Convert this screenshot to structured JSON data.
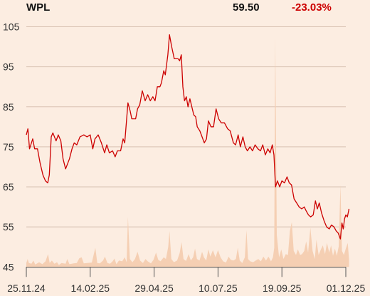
{
  "header": {
    "ticker": "WPL",
    "price": "59.50",
    "change": "-23.03%"
  },
  "chart_data": {
    "type": "line",
    "title": "",
    "xlabel": "",
    "ylabel": "",
    "ylim": [
      45,
      108
    ],
    "yticks": [
      45,
      55,
      65,
      75,
      85,
      95,
      105
    ],
    "xticks": [
      "25.11.24",
      "14.02.25",
      "29.04.25",
      "10.07.25",
      "19.09.25",
      "01.12.25"
    ],
    "x_range": [
      0,
      100
    ],
    "grid": "horizontal",
    "colors": {
      "price_line": "#cc0000",
      "volume_area": "#f5cfb3",
      "grid": "#d9c2b2",
      "axis": "#555555"
    },
    "series": [
      {
        "values": [
          [
            0,
            78.0
          ],
          [
            0.5,
            79.5
          ],
          [
            1,
            74.5
          ],
          [
            2,
            77.0
          ],
          [
            2.6,
            74.5
          ],
          [
            3.5,
            74.5
          ],
          [
            4.3,
            71.0
          ],
          [
            5.2,
            68.0
          ],
          [
            6,
            66.5
          ],
          [
            6.7,
            66.0
          ],
          [
            7.2,
            68.0
          ],
          [
            7.8,
            77.5
          ],
          [
            8.3,
            78.5
          ],
          [
            9.3,
            76.5
          ],
          [
            10,
            78.0
          ],
          [
            10.8,
            76.5
          ],
          [
            11.5,
            72.0
          ],
          [
            12.3,
            69.5
          ],
          [
            13.5,
            72.0
          ],
          [
            14.3,
            74.5
          ],
          [
            15,
            76.0
          ],
          [
            15.8,
            75.5
          ],
          [
            16.8,
            77.5
          ],
          [
            18,
            78.0
          ],
          [
            19,
            77.5
          ],
          [
            20,
            78.0
          ],
          [
            20.8,
            74.5
          ],
          [
            21.5,
            77.0
          ],
          [
            22.5,
            78.0
          ],
          [
            23.5,
            76.0
          ],
          [
            24.5,
            73.5
          ],
          [
            25.2,
            75.5
          ],
          [
            26,
            73.5
          ],
          [
            27,
            74.0
          ],
          [
            27.8,
            72.5
          ],
          [
            28.5,
            74.0
          ],
          [
            29.5,
            74.0
          ],
          [
            30.3,
            77.0
          ],
          [
            30.8,
            76.0
          ],
          [
            31.8,
            86.0
          ],
          [
            32.5,
            84.0
          ],
          [
            33,
            82.0
          ],
          [
            34.2,
            82.0
          ],
          [
            34.8,
            84.5
          ],
          [
            35.5,
            85.5
          ],
          [
            36.3,
            89.0
          ],
          [
            37.2,
            86.5
          ],
          [
            38,
            88.0
          ],
          [
            38.8,
            86.5
          ],
          [
            39.6,
            87.5
          ],
          [
            40.3,
            86.5
          ],
          [
            41,
            90.0
          ],
          [
            41.8,
            90.0
          ],
          [
            42.3,
            91.0
          ],
          [
            43,
            94.0
          ],
          [
            43.5,
            93.0
          ],
          [
            44.3,
            98.0
          ],
          [
            44.8,
            103.0
          ],
          [
            45.5,
            100.0
          ],
          [
            46.3,
            97.0
          ],
          [
            47.5,
            97.0
          ],
          [
            48,
            96.5
          ],
          [
            48.5,
            98.0
          ],
          [
            49,
            90.0
          ],
          [
            49.5,
            86.5
          ],
          [
            50.1,
            87.5
          ],
          [
            50.6,
            85.0
          ],
          [
            51.2,
            87.0
          ],
          [
            51.8,
            85.0
          ],
          [
            52.4,
            83.0
          ],
          [
            53,
            82.5
          ],
          [
            53.5,
            80.0
          ],
          [
            54.3,
            79.0
          ],
          [
            55,
            77.5
          ],
          [
            55.7,
            76.0
          ],
          [
            56.4,
            77.0
          ],
          [
            57,
            81.5
          ],
          [
            57.8,
            80.0
          ],
          [
            58.6,
            80.0
          ],
          [
            59.4,
            84.5
          ],
          [
            60.2,
            82.0
          ],
          [
            61,
            81.0
          ],
          [
            62,
            81.0
          ],
          [
            63,
            79.5
          ],
          [
            63.8,
            79.0
          ],
          [
            64.8,
            76.0
          ],
          [
            65.5,
            75.5
          ],
          [
            66.3,
            78.0
          ],
          [
            67,
            75.0
          ],
          [
            67.8,
            77.5
          ],
          [
            68.5,
            75.0
          ],
          [
            69.2,
            74.0
          ],
          [
            70,
            75.0
          ],
          [
            70.8,
            74.0
          ],
          [
            71.6,
            75.5
          ],
          [
            72.5,
            74.5
          ],
          [
            73.3,
            74.0
          ],
          [
            74,
            75.5
          ],
          [
            74.8,
            73.0
          ],
          [
            75.6,
            74.5
          ],
          [
            76.3,
            73.5
          ],
          [
            77,
            75.5
          ],
          [
            77.5,
            73.0
          ],
          [
            78,
            65.0
          ],
          [
            78.6,
            66.5
          ],
          [
            79.3,
            65.0
          ],
          [
            80,
            66.5
          ],
          [
            80.8,
            66.0
          ],
          [
            81.6,
            67.5
          ],
          [
            82.3,
            66.0
          ],
          [
            83,
            65.5
          ],
          [
            83.8,
            62.0
          ],
          [
            84.6,
            61.0
          ],
          [
            85.4,
            60.0
          ],
          [
            86.2,
            59.5
          ],
          [
            87,
            60.0
          ],
          [
            87.6,
            59.0
          ],
          [
            88.3,
            58.0
          ],
          [
            89,
            57.5
          ],
          [
            89.8,
            58.0
          ],
          [
            90.5,
            61.5
          ],
          [
            91.1,
            59.5
          ],
          [
            91.7,
            61.0
          ],
          [
            92.4,
            58.5
          ],
          [
            93.2,
            56.5
          ],
          [
            94,
            55.0
          ],
          [
            94.8,
            54.5
          ],
          [
            95.5,
            55.5
          ],
          [
            96.3,
            55.0
          ],
          [
            97,
            54.0
          ],
          [
            97.6,
            53.5
          ],
          [
            98.3,
            52.0
          ],
          [
            98.8,
            56.0
          ],
          [
            99.2,
            54.5
          ],
          [
            99.6,
            57.0
          ],
          [
            100,
            58.0
          ],
          [
            100.5,
            57.5
          ],
          [
            101,
            59.5
          ]
        ]
      }
    ],
    "volume_shape": [
      [
        0,
        1.0
      ],
      [
        0.4,
        2.0
      ],
      [
        0.8,
        1.0
      ],
      [
        1.6,
        0.8
      ],
      [
        2.2,
        1.6
      ],
      [
        2.8,
        0.6
      ],
      [
        4,
        1.2
      ],
      [
        5,
        0.7
      ],
      [
        6,
        1.4
      ],
      [
        6.8,
        3.2
      ],
      [
        7.3,
        1.0
      ],
      [
        8,
        1.6
      ],
      [
        8.8,
        0.8
      ],
      [
        9.6,
        1.2
      ],
      [
        10.2,
        0.5
      ],
      [
        11,
        1.0
      ],
      [
        12.3,
        0.8
      ],
      [
        12.8,
        2.0
      ],
      [
        13.5,
        0.7
      ],
      [
        14.8,
        0.9
      ],
      [
        15.8,
        1.0
      ],
      [
        16.6,
        2.2
      ],
      [
        17.3,
        2.4
      ],
      [
        18,
        0.9
      ],
      [
        19,
        1.0
      ],
      [
        20.5,
        1.1
      ],
      [
        21.6,
        4.8
      ],
      [
        22.2,
        1.0
      ],
      [
        23,
        0.9
      ],
      [
        24,
        1.6
      ],
      [
        24.6,
        2.6
      ],
      [
        25.4,
        1.0
      ],
      [
        26.2,
        0.8
      ],
      [
        27,
        1.4
      ],
      [
        27.6,
        2.1
      ],
      [
        28.2,
        0.7
      ],
      [
        29,
        1.6
      ],
      [
        30,
        1.4
      ],
      [
        30.8,
        2.4
      ],
      [
        31.4,
        1.2
      ],
      [
        31.8,
        12.5
      ],
      [
        32.4,
        2.0
      ],
      [
        33.2,
        1.2
      ],
      [
        34,
        2.0
      ],
      [
        34.8,
        3.8
      ],
      [
        35.6,
        1.6
      ],
      [
        36.5,
        1.0
      ],
      [
        37.3,
        2.0
      ],
      [
        38,
        1.4
      ],
      [
        39,
        0.9
      ],
      [
        39.8,
        1.8
      ],
      [
        40.6,
        3.6
      ],
      [
        41.3,
        1.8
      ],
      [
        42,
        1.4
      ],
      [
        43,
        2.4
      ],
      [
        43.7,
        2.0
      ],
      [
        44.4,
        5.0
      ],
      [
        44.8,
        9.0
      ],
      [
        45.4,
        2.0
      ],
      [
        46.2,
        1.2
      ],
      [
        47.2,
        1.6
      ],
      [
        48,
        3.5
      ],
      [
        48.6,
        6.2
      ],
      [
        49.2,
        2.0
      ],
      [
        50,
        1.5
      ],
      [
        50.8,
        3.2
      ],
      [
        51.5,
        1.6
      ],
      [
        52.2,
        2.4
      ],
      [
        52.8,
        4.6
      ],
      [
        53.4,
        2.0
      ],
      [
        54.2,
        1.6
      ],
      [
        55,
        3.8
      ],
      [
        55.6,
        2.4
      ],
      [
        56.3,
        1.6
      ],
      [
        57,
        4.4
      ],
      [
        57.6,
        2.6
      ],
      [
        58.4,
        4.2
      ],
      [
        59.2,
        2.4
      ],
      [
        60,
        4.2
      ],
      [
        60.8,
        2.4
      ],
      [
        61.6,
        1.4
      ],
      [
        62.5,
        1.1
      ],
      [
        63.3,
        2.6
      ],
      [
        64,
        1.8
      ],
      [
        64.8,
        1.6
      ],
      [
        65.6,
        2.0
      ],
      [
        66.2,
        4.8
      ],
      [
        66.8,
        1.6
      ],
      [
        67.6,
        1.0
      ],
      [
        68.4,
        2.4
      ],
      [
        68.9,
        9.2
      ],
      [
        69.4,
        2.0
      ],
      [
        70.1,
        1.4
      ],
      [
        71,
        1.2
      ],
      [
        71.8,
        1.6
      ],
      [
        72.6,
        2.0
      ],
      [
        73.4,
        1.4
      ],
      [
        74.2,
        2.6
      ],
      [
        75,
        1.6
      ],
      [
        75.8,
        2.6
      ],
      [
        76.6,
        1.4
      ],
      [
        77.2,
        2.4
      ],
      [
        77.6,
        4.8
      ],
      [
        77.9,
        57.5
      ],
      [
        78.4,
        8.0
      ],
      [
        79.1,
        2.4
      ],
      [
        79.8,
        4.4
      ],
      [
        80.5,
        2.0
      ],
      [
        81.2,
        3.2
      ],
      [
        81.9,
        3.0
      ],
      [
        82.5,
        9.0
      ],
      [
        83.1,
        11.2
      ],
      [
        83.7,
        4.0
      ],
      [
        84.4,
        3.0
      ],
      [
        85,
        4.4
      ],
      [
        85.7,
        3.0
      ],
      [
        86.3,
        3.2
      ],
      [
        87,
        4.0
      ],
      [
        87.6,
        6.4
      ],
      [
        88.2,
        3.6
      ],
      [
        88.9,
        9.8
      ],
      [
        89.6,
        4.0
      ],
      [
        90.3,
        2.0
      ],
      [
        90.8,
        6.8
      ],
      [
        91.5,
        3.0
      ],
      [
        92.2,
        4.4
      ],
      [
        92.8,
        5.4
      ],
      [
        93.5,
        3.2
      ],
      [
        94.1,
        6.0
      ],
      [
        94.8,
        3.6
      ],
      [
        95.4,
        5.4
      ],
      [
        96,
        2.8
      ],
      [
        96.6,
        4.6
      ],
      [
        97.2,
        2.8
      ],
      [
        97.8,
        5.2
      ],
      [
        98.3,
        20.5
      ],
      [
        98.8,
        4.0
      ],
      [
        99.4,
        3.0
      ],
      [
        100,
        4.6
      ],
      [
        100.6,
        6.0
      ],
      [
        101,
        2.0
      ]
    ]
  }
}
